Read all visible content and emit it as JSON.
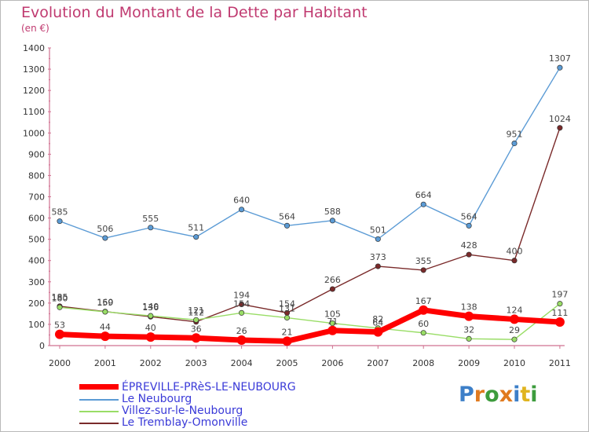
{
  "title": "Evolution du Montant de la Dette par Habitant",
  "subtitle": "(en €)",
  "chart_data": {
    "type": "line",
    "title": "Evolution du Montant de la Dette par Habitant",
    "subtitle": "(en €)",
    "x": [
      "2000",
      "2001",
      "2002",
      "2003",
      "2004",
      "2005",
      "2006",
      "2007",
      "2008",
      "2009",
      "2010",
      "2011"
    ],
    "ylim": [
      0,
      1400
    ],
    "yticks": [
      0,
      100,
      200,
      300,
      400,
      500,
      600,
      700,
      800,
      900,
      1000,
      1100,
      1200,
      1300,
      1400
    ],
    "grid": false,
    "legend_position": "bottom",
    "series": [
      {
        "name": "Le Neubourg",
        "color": "#5b9bd5",
        "values": [
          585,
          506,
          555,
          511,
          640,
          564,
          588,
          501,
          664,
          564,
          951,
          1307
        ]
      },
      {
        "name": "Le Tremblay-Omonville",
        "color": "#7a2a2a",
        "values": [
          185,
          160,
          136,
          112,
          194,
          154,
          266,
          373,
          355,
          428,
          400,
          1024
        ]
      },
      {
        "name": "Villez-sur-le-Neubourg",
        "color": "#99dd66",
        "values": [
          180,
          159,
          140,
          121,
          154,
          131,
          105,
          82,
          60,
          32,
          29,
          197
        ]
      },
      {
        "name": "ÉPREVILLE-PRèS-LE-NEUBOURG",
        "color": "#ff0000",
        "values": [
          53,
          44,
          40,
          36,
          26,
          21,
          71,
          64,
          167,
          138,
          124,
          111
        ]
      }
    ]
  },
  "legend": [
    {
      "label": "ÉPREVILLE-PRèS-LE-NEUBOURG",
      "color": "#ff0000",
      "thick": true
    },
    {
      "label": "Le Neubourg",
      "color": "#5b9bd5",
      "thick": false
    },
    {
      "label": "Villez-sur-le-Neubourg",
      "color": "#99dd66",
      "thick": false
    },
    {
      "label": "Le Tremblay-Omonville",
      "color": "#7a2a2a",
      "thick": false
    }
  ],
  "logo": {
    "letters": [
      "P",
      "r",
      "o",
      "x",
      "i",
      "t",
      "i"
    ],
    "colors": [
      "#3d7fc8",
      "#e07a1f",
      "#3d9c3d",
      "#e07a1f",
      "#3d7fc8",
      "#e0b41f",
      "#3d9c3d"
    ]
  }
}
